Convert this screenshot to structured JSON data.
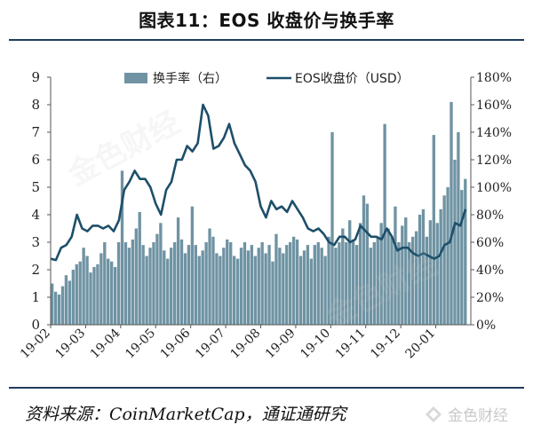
{
  "header": {
    "title": "图表11：EOS 收盘价与换手率"
  },
  "footer": {
    "source": "资料来源：CoinMarketCap，通证通研究",
    "brand": "金色财经"
  },
  "colors": {
    "bar": "#6f93a3",
    "line": "#1d4f6a",
    "rule": "#1f3c5c",
    "text": "#222222"
  },
  "chart_data": {
    "type": "bar+line",
    "categories": [
      "19-02",
      "19-03",
      "19-04",
      "19-05",
      "19-06",
      "19-07",
      "19-08",
      "19-09",
      "19-10",
      "19-11",
      "19-12",
      "20-01"
    ],
    "left_axis": {
      "ylim": [
        0,
        9
      ],
      "ticks": [
        "0",
        "1",
        "2",
        "3",
        "4",
        "5",
        "6",
        "7",
        "8",
        "9"
      ]
    },
    "right_axis": {
      "ylim": [
        0,
        180
      ],
      "ticks": [
        "0%",
        "20%",
        "40%",
        "60%",
        "80%",
        "100%",
        "120%",
        "140%",
        "160%",
        "180%"
      ]
    },
    "legend": {
      "position": "top-center"
    },
    "grid": false,
    "series": [
      {
        "name": "EOS收盘价（USD）",
        "type": "line",
        "axis": "left",
        "x": [
          0,
          0.15,
          0.3,
          0.45,
          0.6,
          0.75,
          0.9,
          1.05,
          1.2,
          1.35,
          1.5,
          1.65,
          1.8,
          1.95,
          2.1,
          2.25,
          2.4,
          2.55,
          2.7,
          2.85,
          3.0,
          3.15,
          3.3,
          3.45,
          3.6,
          3.75,
          3.9,
          4.05,
          4.2,
          4.35,
          4.5,
          4.65,
          4.8,
          4.95,
          5.1,
          5.25,
          5.4,
          5.55,
          5.7,
          5.85,
          6.0,
          6.15,
          6.3,
          6.45,
          6.6,
          6.75,
          6.9,
          7.05,
          7.2,
          7.35,
          7.5,
          7.65,
          7.8,
          7.95,
          8.1,
          8.25,
          8.4,
          8.55,
          8.7,
          8.85,
          9.0,
          9.15,
          9.3,
          9.45,
          9.6,
          9.75,
          9.9,
          10.05,
          10.2,
          10.35,
          10.5,
          10.65,
          10.8,
          10.95,
          11.1,
          11.25,
          11.4,
          11.55,
          11.7,
          11.85
        ],
        "y": [
          2.4,
          2.35,
          2.8,
          2.9,
          3.2,
          4.0,
          3.5,
          3.4,
          3.6,
          3.6,
          3.5,
          3.6,
          3.4,
          3.8,
          4.9,
          5.2,
          5.6,
          5.3,
          5.3,
          5.0,
          4.4,
          4.0,
          4.9,
          5.2,
          6.0,
          6.0,
          6.5,
          6.3,
          6.6,
          8.0,
          7.6,
          6.4,
          6.5,
          6.8,
          7.3,
          6.6,
          6.2,
          5.8,
          5.6,
          5.2,
          4.3,
          3.9,
          4.5,
          4.2,
          4.3,
          4.1,
          4.5,
          4.2,
          3.9,
          3.5,
          3.4,
          3.5,
          3.3,
          3.0,
          2.9,
          3.2,
          3.2,
          3.0,
          3.1,
          3.6,
          3.4,
          3.2,
          3.2,
          3.1,
          3.5,
          3.2,
          2.7,
          2.8,
          2.8,
          2.6,
          2.5,
          2.6,
          2.5,
          2.4,
          2.5,
          2.9,
          3.0,
          3.7,
          3.6,
          4.2
        ]
      },
      {
        "name": "换手率（右）",
        "type": "bar",
        "axis": "right",
        "x": [
          0,
          0.1,
          0.2,
          0.3,
          0.4,
          0.5,
          0.6,
          0.7,
          0.8,
          0.9,
          1.0,
          1.1,
          1.2,
          1.3,
          1.4,
          1.5,
          1.6,
          1.7,
          1.8,
          1.9,
          2.0,
          2.1,
          2.2,
          2.3,
          2.4,
          2.5,
          2.6,
          2.7,
          2.8,
          2.9,
          3.0,
          3.1,
          3.2,
          3.3,
          3.4,
          3.5,
          3.6,
          3.7,
          3.8,
          3.9,
          4.0,
          4.1,
          4.2,
          4.3,
          4.4,
          4.5,
          4.6,
          4.7,
          4.8,
          4.9,
          5.0,
          5.1,
          5.2,
          5.3,
          5.4,
          5.5,
          5.6,
          5.7,
          5.8,
          5.9,
          6.0,
          6.1,
          6.2,
          6.3,
          6.4,
          6.5,
          6.6,
          6.7,
          6.8,
          6.9,
          7.0,
          7.1,
          7.2,
          7.3,
          7.4,
          7.5,
          7.6,
          7.7,
          7.8,
          7.9,
          8.0,
          8.1,
          8.2,
          8.3,
          8.4,
          8.5,
          8.6,
          8.7,
          8.8,
          8.9,
          9.0,
          9.1,
          9.2,
          9.3,
          9.4,
          9.5,
          9.6,
          9.7,
          9.8,
          9.9,
          10.0,
          10.1,
          10.2,
          10.3,
          10.4,
          10.5,
          10.6,
          10.7,
          10.8,
          10.9,
          11.0,
          11.1,
          11.2,
          11.3,
          11.4,
          11.5,
          11.6,
          11.7,
          11.8
        ],
        "y": [
          30,
          24,
          22,
          28,
          36,
          32,
          40,
          44,
          46,
          56,
          50,
          38,
          42,
          44,
          52,
          60,
          48,
          46,
          42,
          60,
          112,
          60,
          56,
          62,
          70,
          82,
          58,
          50,
          56,
          60,
          66,
          74,
          54,
          48,
          56,
          60,
          78,
          62,
          52,
          58,
          86,
          58,
          50,
          54,
          60,
          70,
          64,
          52,
          50,
          56,
          62,
          60,
          50,
          48,
          56,
          60,
          54,
          58,
          50,
          56,
          60,
          52,
          58,
          46,
          66,
          56,
          52,
          58,
          60,
          64,
          62,
          50,
          54,
          58,
          48,
          58,
          60,
          56,
          50,
          64,
          140,
          56,
          60,
          70,
          60,
          76,
          62,
          58,
          74,
          94,
          88,
          56,
          60,
          64,
          74,
          146,
          70,
          64,
          86,
          60,
          72,
          78,
          60,
          64,
          68,
          80,
          84,
          64,
          76,
          138,
          74,
          84,
          94,
          100,
          162,
          120,
          140,
          98,
          106
        ]
      }
    ]
  }
}
